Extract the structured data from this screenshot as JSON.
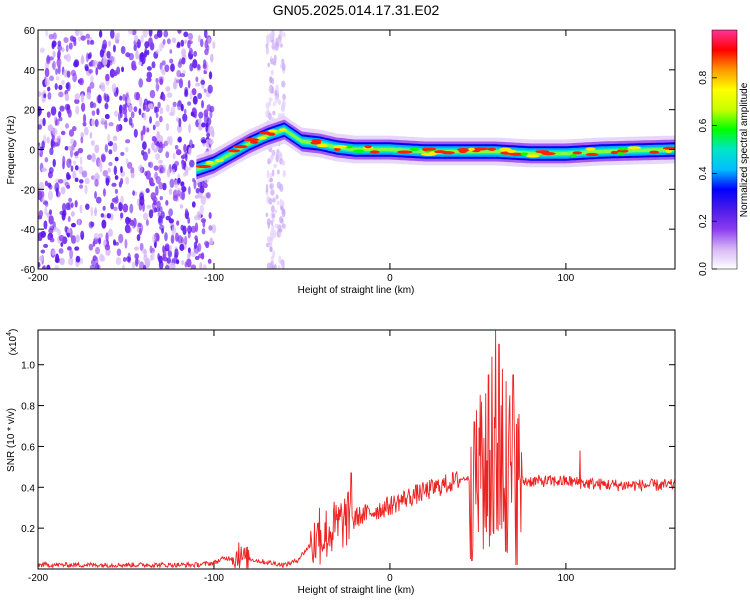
{
  "title": "GN05.2025.014.17.31.E02",
  "chart_data": [
    {
      "type": "heatmap",
      "name": "spectrogram",
      "xlabel": "Height of straight line (km)",
      "ylabel": "Frequency (Hz)",
      "xlim": [
        -200,
        162
      ],
      "ylim": [
        -60,
        60
      ],
      "x_ticks": [
        -200,
        -100,
        0,
        100
      ],
      "x_tick_labels": [
        "-200",
        "-100",
        "0",
        "100"
      ],
      "y_ticks": [
        -60,
        -40,
        -20,
        0,
        20,
        40,
        60
      ],
      "y_tick_labels": [
        "-60",
        "-40",
        "-20",
        "0",
        "20",
        "40",
        "60"
      ],
      "grid": false,
      "colorbar": {
        "label": "Normalized spectral amplitude",
        "range": [
          0,
          1
        ],
        "ticks": [
          0.0,
          0.2,
          0.4,
          0.6,
          0.8
        ],
        "tick_labels": [
          "0.0",
          "0.2",
          "0.4",
          "0.6",
          "0.8"
        ],
        "colormap": [
          "#ffffff",
          "#d7b8f6",
          "#8c3cf0",
          "#4a1be8",
          "#0000ff",
          "#00bfff",
          "#00e6c8",
          "#00ff00",
          "#c8ff00",
          "#ffff00",
          "#ff9900",
          "#ff0000",
          "#ff3399"
        ]
      },
      "ridge": {
        "x": [
          -110,
          -100,
          -90,
          -80,
          -70,
          -60,
          -55,
          -50,
          -40,
          -30,
          -20,
          0,
          20,
          40,
          60,
          80,
          100,
          120,
          162
        ],
        "y": [
          -10,
          -7,
          -2,
          3,
          7,
          10,
          7,
          4,
          3,
          1,
          0,
          0,
          -1,
          -1,
          -1,
          -2,
          -2,
          -1,
          0
        ]
      },
      "noise_region": {
        "x": [
          -200,
          -100
        ],
        "y": [
          -60,
          60
        ]
      },
      "noise_band": {
        "x": [
          -70,
          -60
        ],
        "y": [
          -60,
          60
        ]
      }
    },
    {
      "type": "line",
      "name": "snr",
      "xlabel": "Height of straight line (km)",
      "ylabel": "SNR (10 * v/v)",
      "multiplier_label": "(x10",
      "multiplier_exponent": "4",
      "multiplier_close": ")",
      "xlim": [
        -200,
        162
      ],
      "ylim": [
        0,
        1.17
      ],
      "x_ticks": [
        -200,
        -100,
        0,
        100
      ],
      "x_tick_labels": [
        "-200",
        "-100",
        "0",
        "100"
      ],
      "y_ticks": [
        0.2,
        0.4,
        0.6,
        0.8,
        1.0
      ],
      "y_tick_labels": [
        "0.2",
        "0.4",
        "0.6",
        "0.8",
        "1.0"
      ],
      "line_color": "#ee2222",
      "grid": false,
      "series": [
        {
          "x": [
            -200,
            -150,
            -110,
            -100,
            -95,
            -85,
            -75,
            -60,
            -53,
            -45,
            -35,
            -25,
            -20,
            -10,
            0,
            10,
            20,
            30,
            40,
            50,
            55,
            60,
            65,
            70,
            75,
            90,
            100,
            110,
            130,
            162
          ],
          "y": [
            0.02,
            0.02,
            0.02,
            0.03,
            0.05,
            0.06,
            0.04,
            0.02,
            0.04,
            0.12,
            0.18,
            0.24,
            0.25,
            0.28,
            0.31,
            0.35,
            0.38,
            0.41,
            0.44,
            0.45,
            0.46,
            0.47,
            0.45,
            0.44,
            0.43,
            0.43,
            0.43,
            0.42,
            0.41,
            0.41
          ]
        }
      ],
      "spikes": {
        "x": [
          -86,
          -40,
          -22,
          48,
          52,
          56,
          58,
          60,
          62,
          64,
          66,
          68,
          70,
          72,
          108
        ],
        "y": [
          0.13,
          0.3,
          0.47,
          0.72,
          0.82,
          0.95,
          1.04,
          1.17,
          1.1,
          0.98,
          0.92,
          0.85,
          0.95,
          0.71,
          0.58
        ]
      }
    }
  ]
}
